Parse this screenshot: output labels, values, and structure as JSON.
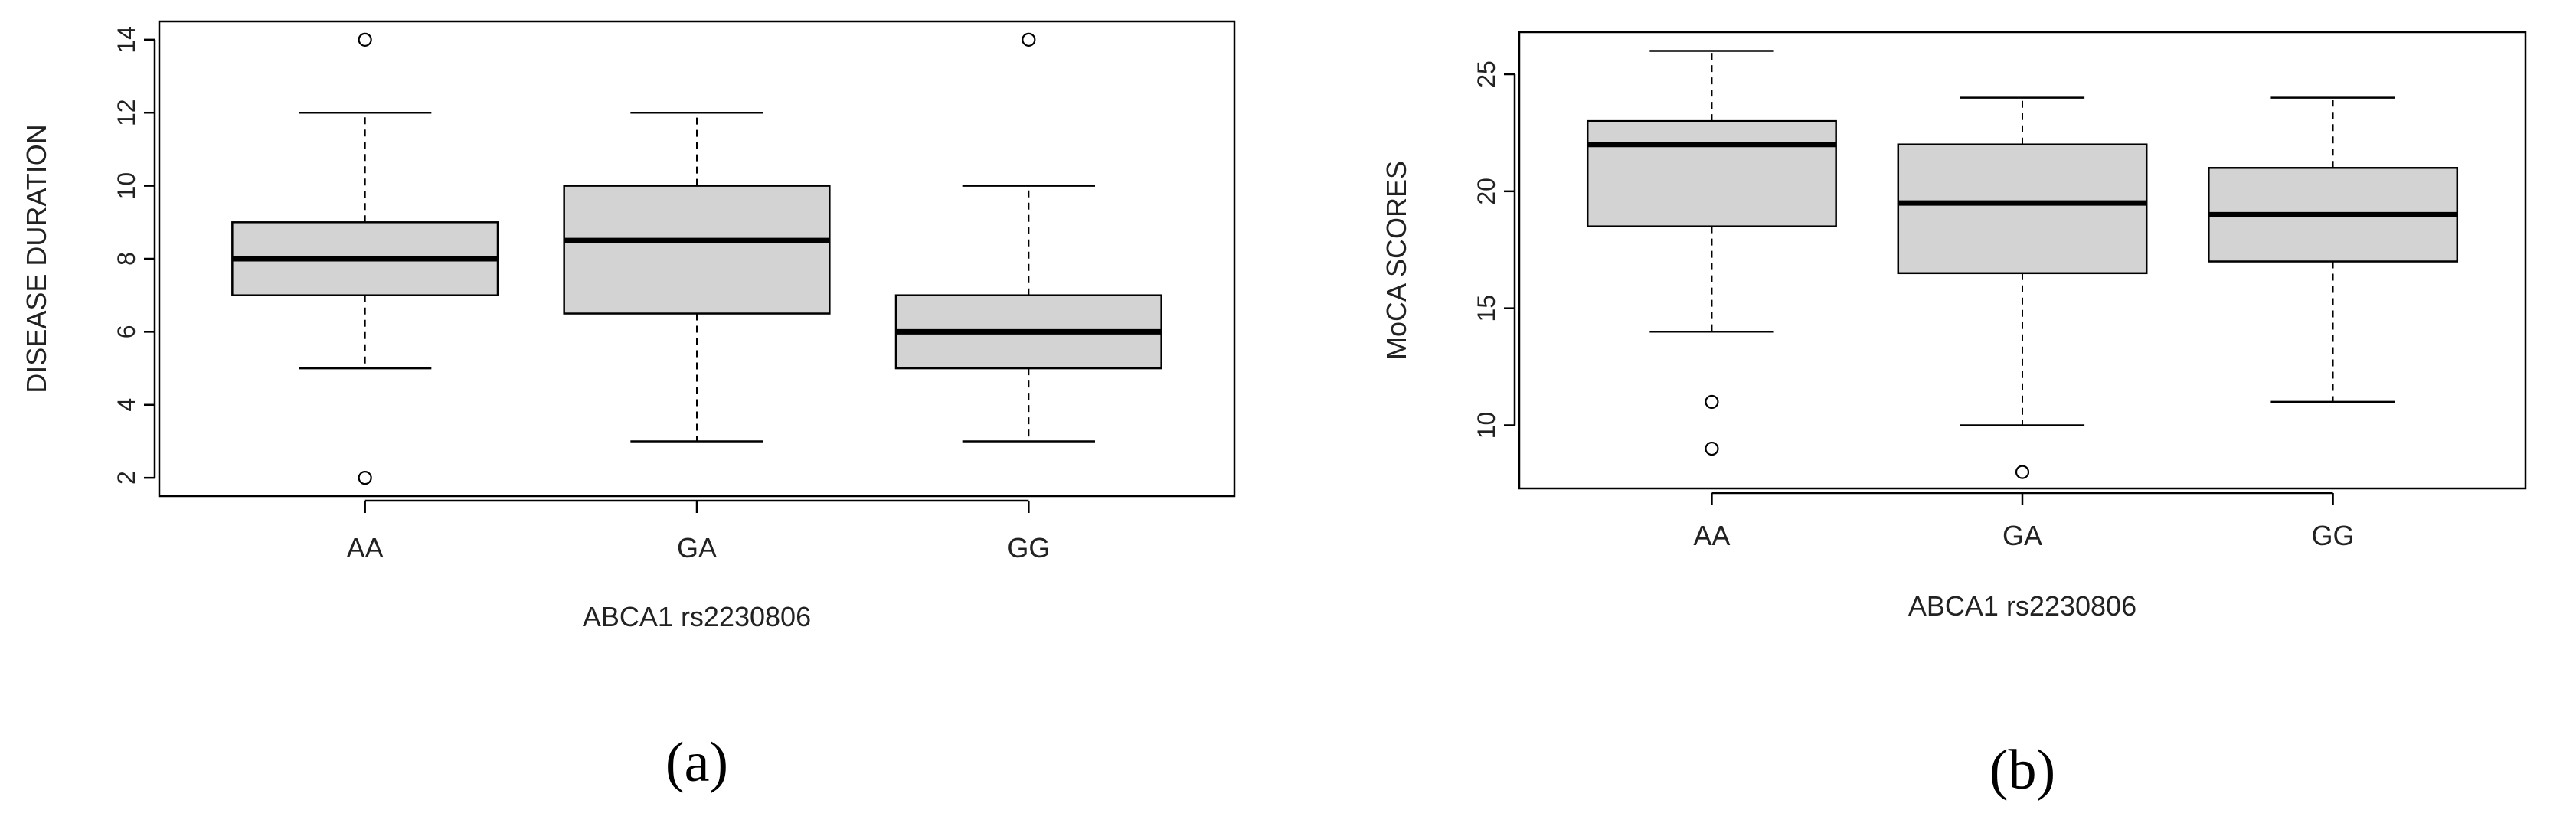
{
  "chart_data": [
    {
      "type": "box",
      "panel_label": "(a)",
      "xlabel": "ABCA1 rs2230806",
      "ylabel": "DISEASE DURATION",
      "categories": [
        "AA",
        "GA",
        "GG"
      ],
      "ylim": [
        1.5,
        14.5
      ],
      "yticks": [
        2,
        4,
        6,
        8,
        10,
        12,
        14
      ],
      "boxes": [
        {
          "category": "AA",
          "whisker_low": 5,
          "q1": 7,
          "median": 8,
          "q3": 9,
          "whisker_high": 12,
          "outliers": [
            2,
            14
          ]
        },
        {
          "category": "GA",
          "whisker_low": 3,
          "q1": 6.5,
          "median": 8.5,
          "q3": 10,
          "whisker_high": 12,
          "outliers": []
        },
        {
          "category": "GG",
          "whisker_low": 3,
          "q1": 5,
          "median": 6,
          "q3": 7,
          "whisker_high": 10,
          "outliers": [
            14
          ]
        }
      ],
      "box_fill": "#d3d3d3",
      "grid": false
    },
    {
      "type": "box",
      "panel_label": "(b)",
      "xlabel": "ABCA1 rs2230806",
      "ylabel": "MoCA SCORES",
      "categories": [
        "AA",
        "GA",
        "GG"
      ],
      "ylim": [
        7.3,
        26.8
      ],
      "yticks": [
        10,
        15,
        20,
        25
      ],
      "boxes": [
        {
          "category": "AA",
          "whisker_low": 14,
          "q1": 18.5,
          "median": 22,
          "q3": 23,
          "whisker_high": 26,
          "outliers": [
            9,
            11
          ]
        },
        {
          "category": "GA",
          "whisker_low": 10,
          "q1": 16.5,
          "median": 19.5,
          "q3": 22,
          "whisker_high": 24,
          "outliers": [
            8
          ]
        },
        {
          "category": "GG",
          "whisker_low": 11,
          "q1": 17,
          "median": 19,
          "q3": 21,
          "whisker_high": 24,
          "outliers": []
        }
      ],
      "box_fill": "#d3d3d3",
      "grid": false
    }
  ]
}
